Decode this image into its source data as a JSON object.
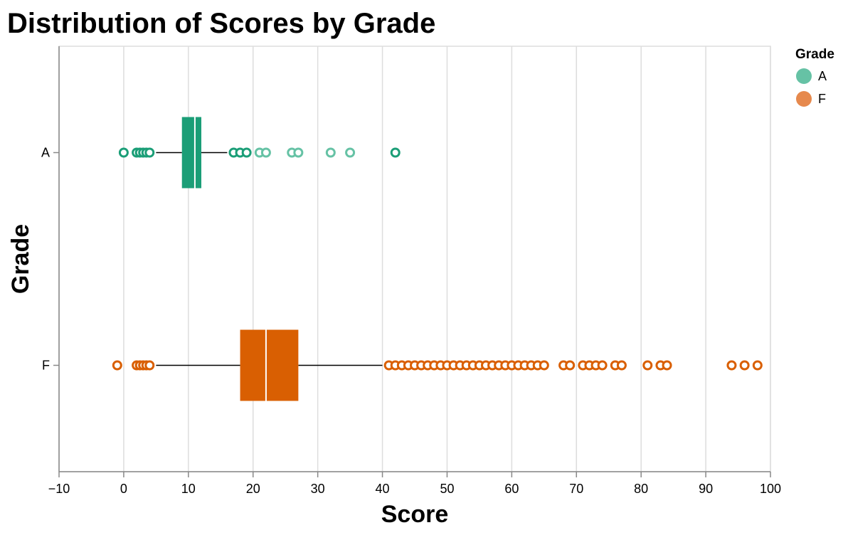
{
  "chart_data": {
    "type": "boxplot",
    "title": "Distribution of Scores by Grade",
    "xlabel": "Score",
    "ylabel": "Grade",
    "xlim": [
      -10,
      100
    ],
    "x_ticks": [
      -10,
      0,
      10,
      20,
      30,
      40,
      50,
      60,
      70,
      80,
      90,
      100
    ],
    "x_tick_labels": [
      "−10",
      "0",
      "10",
      "20",
      "30",
      "40",
      "50",
      "60",
      "70",
      "80",
      "90",
      "100"
    ],
    "categories": [
      "A",
      "F"
    ],
    "grid": "vertical",
    "legend": {
      "title": "Grade",
      "position": "top-right",
      "entries": [
        "A",
        "F"
      ]
    },
    "series": [
      {
        "name": "A",
        "color": "#1b9e77",
        "outlier_color": "#66c2a5",
        "whisker_low": 5,
        "q1": 9,
        "median": 11,
        "q3": 12,
        "whisker_high": 16,
        "outliers": [
          0,
          2,
          2.5,
          3,
          3.5,
          4,
          17,
          18,
          19,
          21,
          22,
          26,
          27,
          32,
          35,
          42
        ]
      },
      {
        "name": "F",
        "color": "#d95f02",
        "outlier_color": "#e6894d",
        "whisker_low": 5,
        "q1": 18,
        "median": 22,
        "q3": 27,
        "whisker_high": 40,
        "outliers": [
          -1,
          2,
          2.5,
          3,
          3.5,
          4,
          41,
          42,
          43,
          44,
          45,
          46,
          47,
          48,
          49,
          50,
          51,
          52,
          53,
          54,
          55,
          56,
          57,
          58,
          59,
          60,
          61,
          62,
          63,
          64,
          65,
          68,
          69,
          71,
          72,
          73,
          74,
          76,
          77,
          81,
          83,
          84,
          94,
          96,
          98
        ]
      }
    ]
  }
}
